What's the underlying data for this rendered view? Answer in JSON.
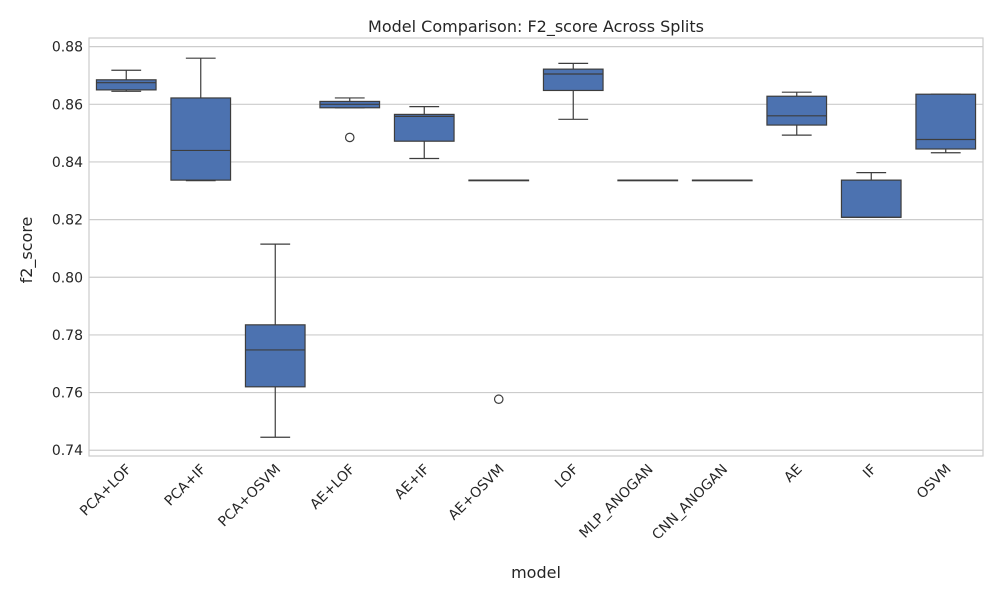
{
  "chart_data": {
    "type": "box",
    "title": "Model Comparison: F2_score Across Splits",
    "xlabel": "model",
    "ylabel": "f2_score",
    "ylim": [
      0.738,
      0.883
    ],
    "yticks": [
      "0.74",
      "0.76",
      "0.78",
      "0.80",
      "0.82",
      "0.84",
      "0.86",
      "0.88"
    ],
    "grid": true,
    "colors": {
      "box_fill": "#4c72b0",
      "line": "#3d3d3d",
      "grid": "#cccccc",
      "frame": "#cccccc",
      "text": "#262626"
    },
    "categories": [
      "PCA+LOF",
      "PCA+IF",
      "PCA+OSVM",
      "AE+LOF",
      "AE+IF",
      "AE+OSVM",
      "LOF",
      "MLP_ANOGAN",
      "CNN_ANOGAN",
      "AE",
      "IF",
      "OSVM"
    ],
    "boxes": [
      {
        "model": "PCA+LOF",
        "whisker_low": 0.8645,
        "q1": 0.865,
        "median": 0.8675,
        "q3": 0.8685,
        "whisker_high": 0.8718,
        "outliers": []
      },
      {
        "model": "PCA+IF",
        "whisker_low": 0.8335,
        "q1": 0.8337,
        "median": 0.844,
        "q3": 0.8622,
        "whisker_high": 0.876,
        "outliers": []
      },
      {
        "model": "PCA+OSVM",
        "whisker_low": 0.7445,
        "q1": 0.762,
        "median": 0.7748,
        "q3": 0.7835,
        "whisker_high": 0.8115,
        "outliers": []
      },
      {
        "model": "AE+LOF",
        "whisker_low": 0.8588,
        "q1": 0.8588,
        "median": 0.86,
        "q3": 0.861,
        "whisker_high": 0.8622,
        "outliers": [
          0.8485
        ]
      },
      {
        "model": "AE+IF",
        "whisker_low": 0.8412,
        "q1": 0.8472,
        "median": 0.8558,
        "q3": 0.8565,
        "whisker_high": 0.8592,
        "outliers": []
      },
      {
        "model": "AE+OSVM",
        "whisker_low": 0.8337,
        "q1": 0.8337,
        "median": 0.8337,
        "q3": 0.8337,
        "whisker_high": 0.8337,
        "outliers": [
          0.7577
        ]
      },
      {
        "model": "LOF",
        "whisker_low": 0.8548,
        "q1": 0.8648,
        "median": 0.8705,
        "q3": 0.8722,
        "whisker_high": 0.8742,
        "outliers": []
      },
      {
        "model": "MLP_ANOGAN",
        "whisker_low": 0.8337,
        "q1": 0.8337,
        "median": 0.8337,
        "q3": 0.8337,
        "whisker_high": 0.8337,
        "outliers": []
      },
      {
        "model": "CNN_ANOGAN",
        "whisker_low": 0.8337,
        "q1": 0.8337,
        "median": 0.8337,
        "q3": 0.8337,
        "whisker_high": 0.8337,
        "outliers": []
      },
      {
        "model": "AE",
        "whisker_low": 0.8493,
        "q1": 0.8528,
        "median": 0.856,
        "q3": 0.8628,
        "whisker_high": 0.8642,
        "outliers": []
      },
      {
        "model": "IF",
        "whisker_low": 0.8208,
        "q1": 0.8208,
        "median": 0.8208,
        "q3": 0.8337,
        "whisker_high": 0.8363,
        "outliers": []
      },
      {
        "model": "OSVM",
        "whisker_low": 0.8432,
        "q1": 0.8445,
        "median": 0.8478,
        "q3": 0.8635,
        "whisker_high": 0.8635,
        "outliers": []
      }
    ]
  }
}
